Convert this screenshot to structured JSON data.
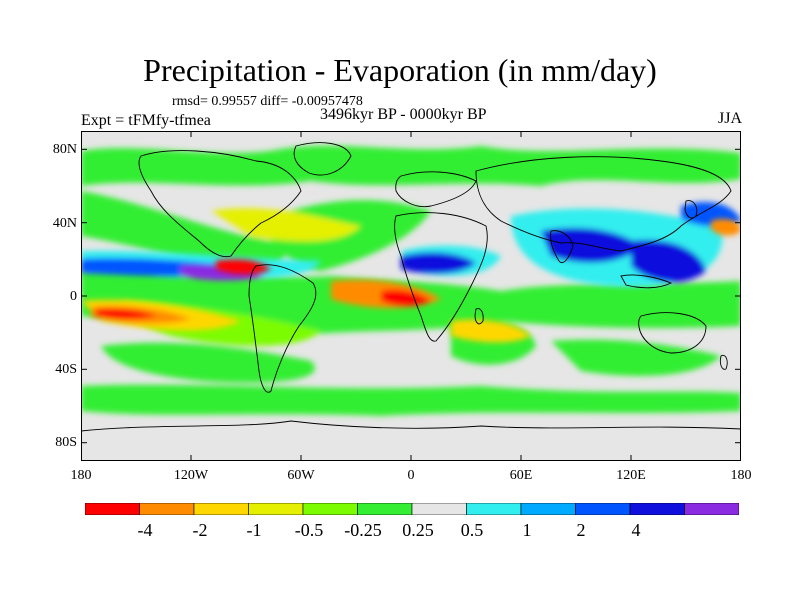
{
  "title": "Precipitation - Evaporation (in mm/day)",
  "stats": "rmsd= 0.99557 diff= -0.00957478",
  "experiment": "Expt = tFMfy-tfmea",
  "period": "3496kyr BP - 0000kyr BP",
  "season": "JJA",
  "lat_labels": [
    "80N",
    "40N",
    "0",
    "40S",
    "80S"
  ],
  "lon_labels": [
    "180",
    "120W",
    "60W",
    "0",
    "60E",
    "120E",
    "180"
  ],
  "colorbar": {
    "labels": [
      "-4",
      "-2",
      "-1",
      "-0.5",
      "-0.25",
      "0.25",
      "0.5",
      "1",
      "2",
      "4"
    ],
    "colors": [
      "#ff0000",
      "#ff8c00",
      "#ffd700",
      "#e5f000",
      "#7cfc00",
      "#33ee33",
      "#e6e6e6",
      "#33eeee",
      "#00aaff",
      "#0055ff",
      "#1010dd",
      "#8a2be2"
    ]
  },
  "map_colors": {
    "background": "#e6e6e6",
    "frame": "#000000"
  }
}
